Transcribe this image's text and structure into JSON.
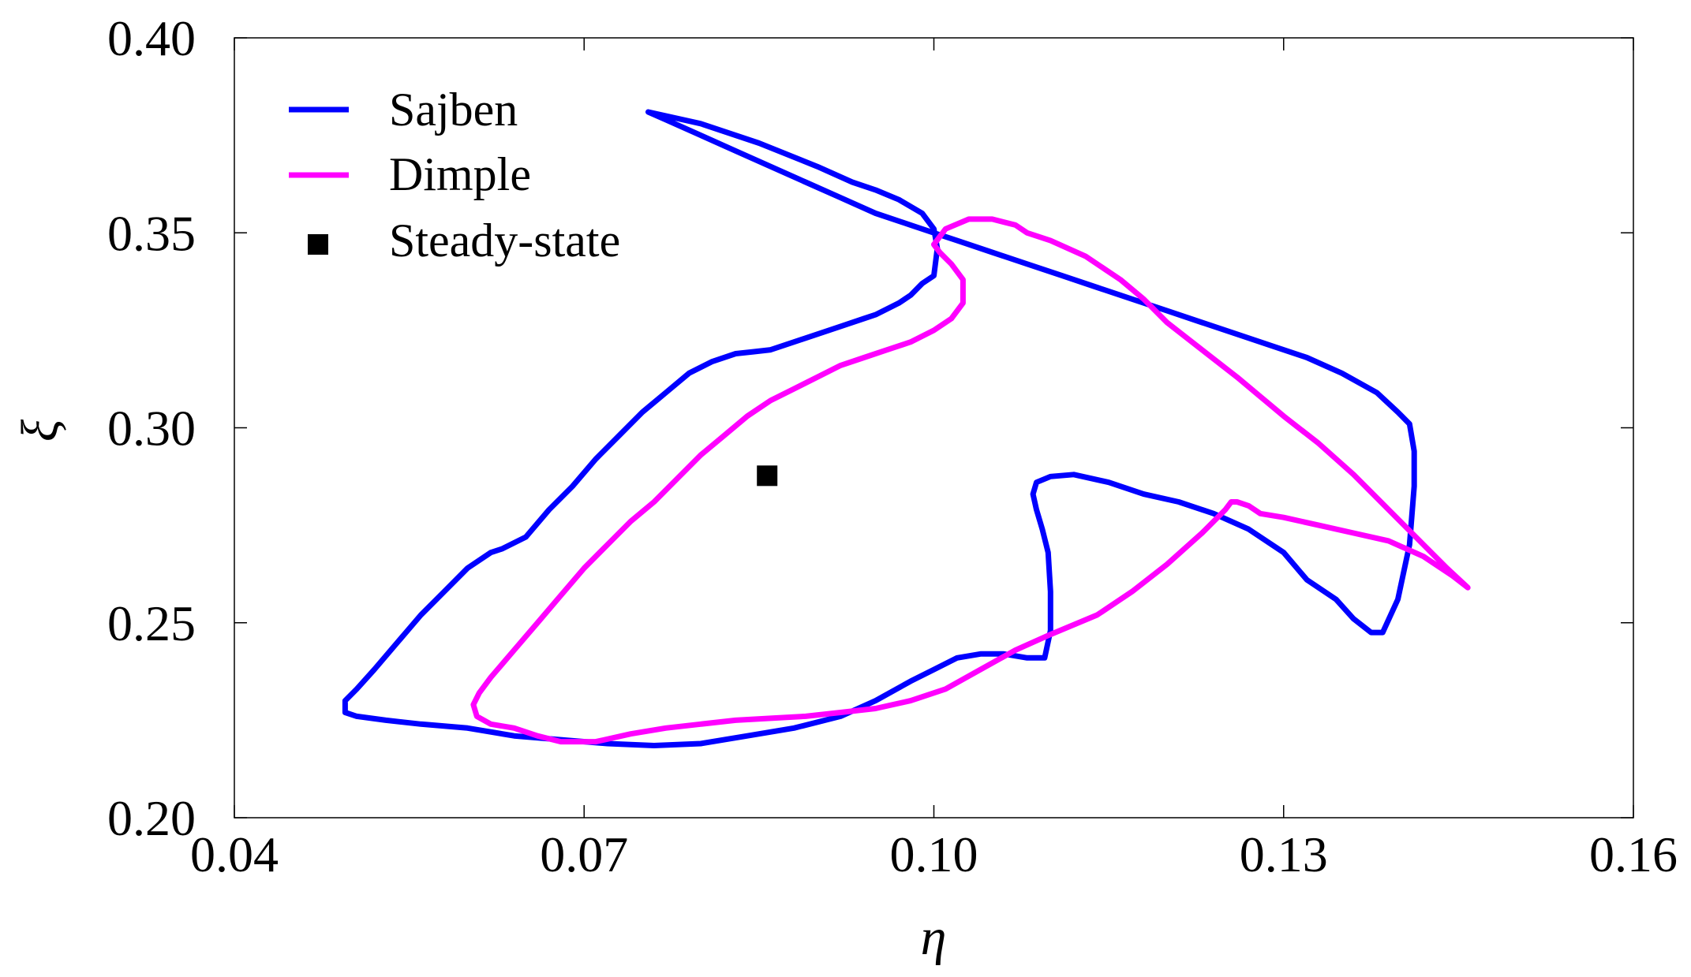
{
  "chart_data": {
    "type": "line",
    "title": "",
    "xlabel": "η",
    "ylabel": "ξ",
    "xlim": [
      0.04,
      0.16
    ],
    "ylim": [
      0.2,
      0.4
    ],
    "xticks": [
      "0.04",
      "0.07",
      "0.10",
      "0.13",
      "0.16"
    ],
    "yticks": [
      "0.20",
      "0.25",
      "0.30",
      "0.35",
      "0.40"
    ],
    "grid": false,
    "legend_position": "top-left",
    "series": [
      {
        "name": "Sajben",
        "color": "#0000ff",
        "marker": "none",
        "x": [
          0.0755,
          0.08,
          0.085,
          0.09,
          0.093,
          0.095,
          0.097,
          0.099,
          0.1,
          0.1003,
          0.1,
          0.099,
          0.098,
          0.097,
          0.095,
          0.094,
          0.092,
          0.09,
          0.088,
          0.086,
          0.0845,
          0.083,
          0.081,
          0.079,
          0.077,
          0.075,
          0.073,
          0.071,
          0.069,
          0.067,
          0.065,
          0.063,
          0.062,
          0.06,
          0.058,
          0.056,
          0.054,
          0.052,
          0.0505,
          0.0495,
          0.0495,
          0.0505,
          0.053,
          0.056,
          0.06,
          0.064,
          0.068,
          0.072,
          0.076,
          0.08,
          0.084,
          0.088,
          0.092,
          0.095,
          0.098,
          0.1,
          0.102,
          0.104,
          0.106,
          0.108,
          0.1095,
          0.11,
          0.11,
          0.1098,
          0.1093,
          0.1088,
          0.1085,
          0.1088,
          0.11,
          0.112,
          0.115,
          0.118,
          0.121,
          0.124,
          0.127,
          0.13,
          0.132,
          0.1345,
          0.136,
          0.1375,
          0.1385,
          0.1398,
          0.1408,
          0.1412,
          0.1412,
          0.1408,
          0.1398,
          0.138,
          0.135,
          0.132,
          0.129,
          0.126,
          0.123,
          0.12,
          0.117,
          0.114,
          0.111,
          0.108,
          0.105,
          0.102,
          0.1,
          0.098,
          0.095,
          0.092,
          0.089,
          0.086,
          0.083,
          0.08,
          0.077,
          0.0755
        ],
        "y": [
          0.381,
          0.378,
          0.373,
          0.367,
          0.363,
          0.361,
          0.3585,
          0.355,
          0.351,
          0.346,
          0.339,
          0.337,
          0.334,
          0.332,
          0.329,
          0.328,
          0.326,
          0.324,
          0.322,
          0.32,
          0.3195,
          0.319,
          0.317,
          0.314,
          0.309,
          0.304,
          0.298,
          0.292,
          0.285,
          0.279,
          0.272,
          0.269,
          0.268,
          0.264,
          0.258,
          0.252,
          0.245,
          0.238,
          0.233,
          0.23,
          0.227,
          0.226,
          0.225,
          0.224,
          0.223,
          0.221,
          0.22,
          0.219,
          0.2185,
          0.219,
          0.221,
          0.223,
          0.226,
          0.23,
          0.235,
          0.238,
          0.241,
          0.242,
          0.242,
          0.241,
          0.241,
          0.248,
          0.258,
          0.268,
          0.274,
          0.279,
          0.283,
          0.286,
          0.2875,
          0.288,
          0.286,
          0.283,
          0.281,
          0.278,
          0.274,
          0.268,
          0.261,
          0.256,
          0.251,
          0.2475,
          0.2475,
          0.256,
          0.27,
          0.285,
          0.294,
          0.301,
          0.304,
          0.309,
          0.314,
          0.318,
          0.321,
          0.324,
          0.327,
          0.33,
          0.333,
          0.336,
          0.339,
          0.342,
          0.345,
          0.348,
          0.35,
          0.352,
          0.355,
          0.359,
          0.363,
          0.367,
          0.371,
          0.375,
          0.379,
          0.381
        ]
      },
      {
        "name": "Dimple",
        "color": "#ff00ff",
        "marker": "none",
        "x": [
          0.1,
          0.101,
          0.103,
          0.105,
          0.107,
          0.108,
          0.11,
          0.113,
          0.116,
          0.118,
          0.12,
          0.123,
          0.126,
          0.128,
          0.13,
          0.133,
          0.136,
          0.139,
          0.142,
          0.144,
          0.1458,
          0.1445,
          0.142,
          0.139,
          0.136,
          0.133,
          0.13,
          0.128,
          0.127,
          0.126,
          0.1255,
          0.125,
          0.123,
          0.12,
          0.117,
          0.114,
          0.11,
          0.107,
          0.104,
          0.101,
          0.098,
          0.095,
          0.092,
          0.089,
          0.086,
          0.083,
          0.08,
          0.077,
          0.074,
          0.071,
          0.068,
          0.066,
          0.064,
          0.062,
          0.0608,
          0.0605,
          0.061,
          0.062,
          0.064,
          0.066,
          0.068,
          0.07,
          0.072,
          0.074,
          0.076,
          0.078,
          0.08,
          0.082,
          0.084,
          0.086,
          0.088,
          0.09,
          0.092,
          0.094,
          0.096,
          0.098,
          0.1,
          0.1015,
          0.1025,
          0.1025,
          0.1015,
          0.1005,
          0.1
        ],
        "y": [
          0.347,
          0.351,
          0.3535,
          0.3535,
          0.352,
          0.35,
          0.348,
          0.344,
          0.338,
          0.333,
          0.327,
          0.32,
          0.313,
          0.308,
          0.303,
          0.296,
          0.288,
          0.279,
          0.27,
          0.264,
          0.259,
          0.262,
          0.267,
          0.271,
          0.273,
          0.275,
          0.277,
          0.278,
          0.28,
          0.281,
          0.281,
          0.279,
          0.273,
          0.265,
          0.258,
          0.252,
          0.247,
          0.243,
          0.238,
          0.233,
          0.23,
          0.228,
          0.227,
          0.226,
          0.2255,
          0.225,
          0.224,
          0.223,
          0.2215,
          0.2195,
          0.2195,
          0.221,
          0.223,
          0.224,
          0.226,
          0.229,
          0.232,
          0.236,
          0.243,
          0.25,
          0.257,
          0.264,
          0.27,
          0.276,
          0.281,
          0.287,
          0.293,
          0.298,
          0.303,
          0.307,
          0.31,
          0.313,
          0.316,
          0.318,
          0.32,
          0.322,
          0.325,
          0.328,
          0.332,
          0.338,
          0.342,
          0.345,
          0.347
        ]
      },
      {
        "name": "Steady-state",
        "color": "#000000",
        "marker": "square",
        "type": "scatter",
        "x": [
          0.0857
        ],
        "y": [
          0.2877
        ]
      }
    ]
  }
}
